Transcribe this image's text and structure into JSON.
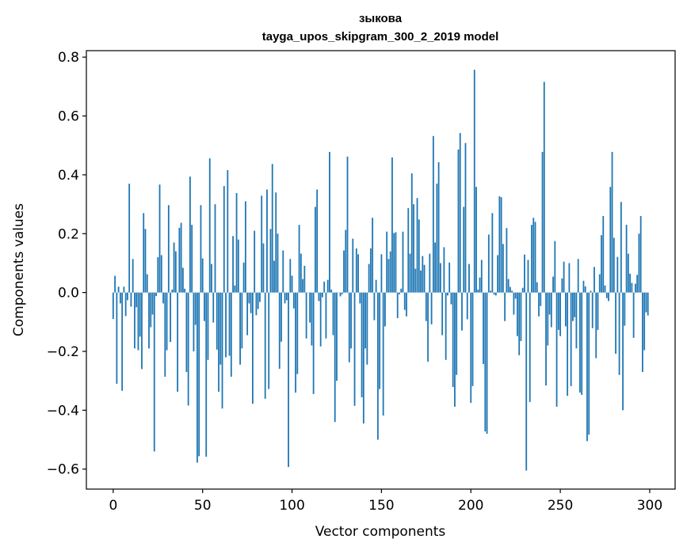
{
  "chart_data": {
    "type": "bar",
    "title": [
      "зыкова",
      "tayga_upos_skipgram_300_2_2019 model"
    ],
    "xlabel": "Vector components",
    "ylabel": "Components values",
    "xlim": [
      -15,
      314.2
    ],
    "ylim": [
      -0.668,
      0.822
    ],
    "xticks": [
      0,
      50,
      100,
      150,
      200,
      250,
      300
    ],
    "yticks": [
      -0.6,
      -0.4,
      -0.2,
      0.0,
      0.2,
      0.4,
      0.6,
      0.8
    ],
    "ytick_labels": [
      "−0.6",
      "−0.4",
      "−0.2",
      "0.0",
      "0.2",
      "0.4",
      "0.6",
      "0.8"
    ],
    "grid": false,
    "bar_color": "#1f77b4",
    "values": [
      -0.09,
      0.057,
      -0.31,
      0.02,
      -0.037,
      -0.334,
      0.02,
      -0.08,
      -0.026,
      0.37,
      -0.048,
      0.114,
      -0.19,
      -0.05,
      -0.196,
      -0.15,
      -0.26,
      0.27,
      0.216,
      0.062,
      -0.19,
      -0.118,
      -0.075,
      -0.54,
      -0.012,
      0.12,
      0.367,
      0.127,
      -0.037,
      -0.286,
      -0.196,
      0.297,
      -0.168,
      0.01,
      0.17,
      0.14,
      -0.337,
      0.22,
      0.237,
      0.084,
      0.013,
      -0.27,
      -0.384,
      0.394,
      0.23,
      -0.2,
      -0.11,
      -0.578,
      -0.556,
      0.297,
      0.116,
      -0.097,
      -0.558,
      -0.229,
      0.456,
      0.097,
      -0.102,
      0.3,
      -0.194,
      -0.337,
      -0.245,
      -0.394,
      0.362,
      -0.22,
      0.416,
      -0.215,
      -0.286,
      0.192,
      0.024,
      0.338,
      0.18,
      -0.245,
      -0.19,
      0.102,
      0.31,
      -0.145,
      -0.037,
      -0.07,
      -0.378,
      0.21,
      -0.077,
      -0.056,
      -0.032,
      0.329,
      0.167,
      -0.361,
      0.35,
      -0.328,
      0.216,
      0.437,
      0.108,
      0.34,
      0.2,
      -0.259,
      -0.167,
      0.143,
      -0.037,
      -0.026,
      -0.593,
      0.114,
      0.057,
      -0.054,
      -0.34,
      -0.277,
      0.23,
      0.132,
      0.046,
      0.091,
      -0.156,
      0.0,
      -0.102,
      -0.18,
      -0.345,
      0.291,
      0.35,
      -0.029,
      -0.183,
      -0.016,
      0.037,
      -0.156,
      0.043,
      0.478,
      0.01,
      -0.145,
      -0.44,
      -0.3,
      0.0,
      -0.013,
      -0.006,
      0.143,
      0.213,
      0.462,
      -0.237,
      -0.19,
      0.183,
      -0.385,
      0.15,
      0.13,
      -0.037,
      -0.356,
      -0.445,
      -0.19,
      -0.245,
      0.097,
      0.15,
      0.254,
      -0.094,
      0.043,
      -0.5,
      -0.328,
      0.13,
      -0.418,
      -0.115,
      0.207,
      0.114,
      0.14,
      0.459,
      0.202,
      0.205,
      -0.087,
      -0.006,
      0.013,
      0.207,
      -0.059,
      -0.081,
      0.287,
      0.132,
      0.405,
      0.3,
      0.081,
      0.321,
      0.248,
      0.075,
      0.124,
      0.094,
      -0.097,
      -0.235,
      0.132,
      -0.108,
      0.532,
      0.17,
      0.37,
      0.443,
      0.1,
      -0.145,
      0.154,
      -0.229,
      -0.01,
      0.102,
      -0.04,
      -0.321,
      -0.388,
      -0.28,
      0.486,
      0.542,
      -0.129,
      0.291,
      0.508,
      -0.091,
      0.097,
      -0.375,
      -0.318,
      0.757,
      0.359,
      0.01,
      0.051,
      0.111,
      -0.243,
      -0.472,
      -0.48,
      0.197,
      0.006,
      0.27,
      -0.007,
      -0.01,
      0.127,
      0.327,
      0.324,
      0.165,
      -0.097,
      0.219,
      0.046,
      0.019,
      0.006,
      -0.075,
      -0.021,
      -0.148,
      -0.213,
      -0.165,
      0.016,
      0.129,
      -0.605,
      0.111,
      -0.372,
      0.23,
      0.254,
      0.24,
      0.035,
      -0.081,
      -0.046,
      0.478,
      0.716,
      -0.316,
      -0.18,
      -0.075,
      -0.118,
      0.054,
      0.175,
      -0.388,
      -0.127,
      -0.148,
      0.048,
      0.105,
      -0.115,
      -0.351,
      0.1,
      -0.318,
      -0.097,
      -0.084,
      -0.19,
      0.114,
      -0.34,
      -0.348,
      0.04,
      0.021,
      -0.505,
      -0.483,
      0.006,
      -0.121,
      0.087,
      -0.223,
      -0.127,
      0.062,
      0.195,
      0.26,
      0.024,
      -0.019,
      -0.029,
      0.359,
      0.478,
      0.186,
      -0.208,
      0.121,
      -0.28,
      0.308,
      -0.4,
      -0.113,
      0.23,
      0.132,
      0.064,
      0.033,
      -0.154,
      0.03,
      0.06,
      0.2,
      0.26,
      -0.27,
      -0.196,
      -0.067,
      -0.078
    ]
  }
}
